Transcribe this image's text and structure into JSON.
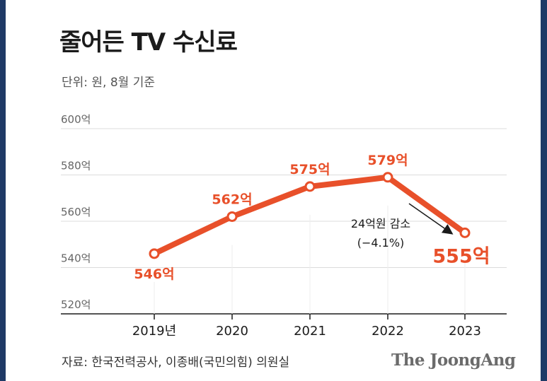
{
  "header": {
    "title": "줄어든 TV 수신료",
    "unit": "단위: 원, 8월 기준"
  },
  "footer": {
    "source": "자료: 한국전력공사, 이종배(국민의힘) 의원실",
    "brand": "The JoongAng"
  },
  "colors": {
    "line": "#e8502a",
    "grid": "#dcdcdc"
  },
  "chart_data": {
    "type": "line",
    "title": "줄어든 TV 수신료",
    "x": [
      "2019년",
      "2020",
      "2021",
      "2022",
      "2023"
    ],
    "series": [
      {
        "values": [
          546,
          562,
          575,
          579,
          555
        ]
      }
    ],
    "data_labels": [
      "546억",
      "562억",
      "575억",
      "579억",
      "555억"
    ],
    "yticks": [
      520,
      540,
      560,
      580,
      600
    ],
    "ytick_labels": [
      "520억",
      "540억",
      "560억",
      "580억",
      "600억"
    ],
    "ylim": [
      520,
      600
    ],
    "grid": true,
    "annotation": {
      "line1": "24억원 감소",
      "line2": "(−4.1%)"
    }
  }
}
